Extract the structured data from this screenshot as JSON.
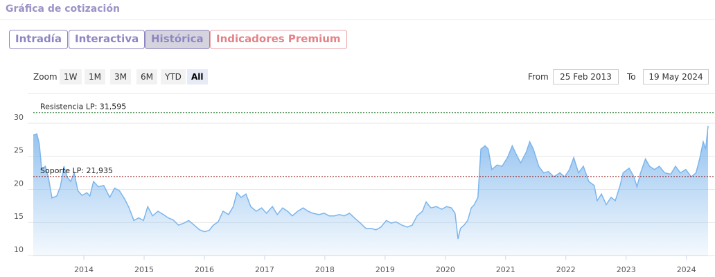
{
  "header": {
    "title": "Gráfica de cotización"
  },
  "tabs": [
    {
      "label": "Intradía"
    },
    {
      "label": "Interactiva"
    },
    {
      "label": "Histórica",
      "active": true
    },
    {
      "label": "Indicadores Premium",
      "premium": true
    }
  ],
  "zoom": {
    "label": "Zoom",
    "buttons": [
      "1W",
      "1M",
      "3M",
      "6M",
      "YTD",
      "All"
    ],
    "active": 5
  },
  "range": {
    "from_label": "From",
    "from": "25 Feb 2013",
    "to_label": "To",
    "to": "19 May 2024"
  },
  "chart_data": {
    "type": "area",
    "color": "#7cb5ec",
    "x": [
      2013.16,
      2013.22,
      2013.26,
      2013.3,
      2013.36,
      2013.41,
      2013.47,
      2013.55,
      2013.61,
      2013.67,
      2013.72,
      2013.78,
      2013.84,
      2013.9,
      2013.97,
      2014.05,
      2014.1,
      2014.16,
      2014.24,
      2014.33,
      2014.43,
      2014.51,
      2014.59,
      2014.68,
      2014.75,
      2014.83,
      2014.91,
      2014.99,
      2015.06,
      2015.14,
      2015.23,
      2015.32,
      2015.4,
      2015.48,
      2015.57,
      2015.66,
      2015.74,
      2015.83,
      2015.92,
      2016.0,
      2016.08,
      2016.15,
      2016.23,
      2016.31,
      2016.4,
      2016.48,
      2016.54,
      2016.61,
      2016.69,
      2016.77,
      2016.86,
      2016.95,
      2017.03,
      2017.13,
      2017.21,
      2017.3,
      2017.38,
      2017.46,
      2017.55,
      2017.64,
      2017.72,
      2017.8,
      2017.9,
      2017.99,
      2018.07,
      2018.16,
      2018.24,
      2018.32,
      2018.41,
      2018.49,
      2018.59,
      2018.68,
      2018.76,
      2018.85,
      2018.93,
      2019.02,
      2019.1,
      2019.18,
      2019.28,
      2019.37,
      2019.45,
      2019.53,
      2019.62,
      2019.68,
      2019.76,
      2019.85,
      2019.94,
      2020.02,
      2020.1,
      2020.16,
      2020.21,
      2020.25,
      2020.31,
      2020.37,
      2020.43,
      2020.48,
      2020.54,
      2020.59,
      2020.66,
      2020.71,
      2020.77,
      2020.86,
      2020.94,
      2021.03,
      2021.11,
      2021.17,
      2021.25,
      2021.34,
      2021.4,
      2021.46,
      2021.55,
      2021.63,
      2021.71,
      2021.8,
      2021.9,
      2021.98,
      2022.06,
      2022.13,
      2022.21,
      2022.29,
      2022.38,
      2022.47,
      2022.52,
      2022.59,
      2022.67,
      2022.75,
      2022.82,
      2022.9,
      2022.95,
      2023.05,
      2023.13,
      2023.18,
      2023.24,
      2023.32,
      2023.39,
      2023.47,
      2023.55,
      2023.64,
      2023.74,
      2023.82,
      2023.9,
      2023.99,
      2024.08,
      2024.16,
      2024.22,
      2024.28,
      2024.32,
      2024.36
    ],
    "values": [
      28.2,
      28.4,
      26.9,
      23,
      23.5,
      21.9,
      18.7,
      19,
      20.4,
      23.5,
      21.9,
      21.2,
      22.5,
      19.8,
      19.1,
      19.5,
      19,
      21.2,
      20.4,
      20.6,
      18.8,
      20.2,
      19.8,
      18.5,
      17.2,
      15.3,
      15.7,
      15.3,
      17.4,
      16,
      16.7,
      16.2,
      15.7,
      15.4,
      14.6,
      14.9,
      15.3,
      14.6,
      13.9,
      13.6,
      13.8,
      14.6,
      15.1,
      16.7,
      16.2,
      17.4,
      19.5,
      18.8,
      19.3,
      17.4,
      16.7,
      17.2,
      16.4,
      17.4,
      16.2,
      17.2,
      16.7,
      16,
      16.7,
      17.2,
      16.7,
      16.4,
      16.2,
      16.4,
      16,
      16,
      16.2,
      16,
      16.4,
      15.7,
      14.9,
      14.1,
      14.1,
      13.9,
      14.3,
      15.3,
      14.9,
      15.1,
      14.6,
      14.3,
      14.6,
      16,
      16.7,
      18.1,
      17.2,
      17.4,
      17,
      17.4,
      17.2,
      16.4,
      12.5,
      14.1,
      14.6,
      15.3,
      17.2,
      17.7,
      18.8,
      26.1,
      26.6,
      26.1,
      23,
      23.7,
      23.5,
      24.8,
      26.6,
      25.4,
      24,
      25.6,
      27.2,
      26.1,
      23.5,
      22.5,
      22.7,
      21.9,
      22.5,
      21.9,
      23,
      24.8,
      22.5,
      23.5,
      21.2,
      20.6,
      18.3,
      19.3,
      17.7,
      18.8,
      18.3,
      20.6,
      22.5,
      23.2,
      21.9,
      20.4,
      22.5,
      24.6,
      23.5,
      23,
      23.5,
      22.5,
      22.3,
      23.5,
      22.5,
      23,
      21.9,
      22.5,
      24.6,
      27.2,
      26.1,
      29.6
    ],
    "xlim": [
      2013.16,
      2024.36
    ],
    "xticks": [
      2014,
      2015,
      2016,
      2017,
      2018,
      2019,
      2020,
      2021,
      2022,
      2023,
      2024
    ],
    "ylim": [
      10,
      34.5
    ],
    "yticks": [
      10,
      15,
      20,
      25,
      30
    ],
    "grid": true,
    "reference_lines": [
      {
        "label": "Resistencia LP: 31,595",
        "value": 31.595,
        "color": "#2e7d32"
      },
      {
        "label": "Soporte LP: 21,935",
        "value": 21.935,
        "color": "#8b0000"
      }
    ]
  }
}
